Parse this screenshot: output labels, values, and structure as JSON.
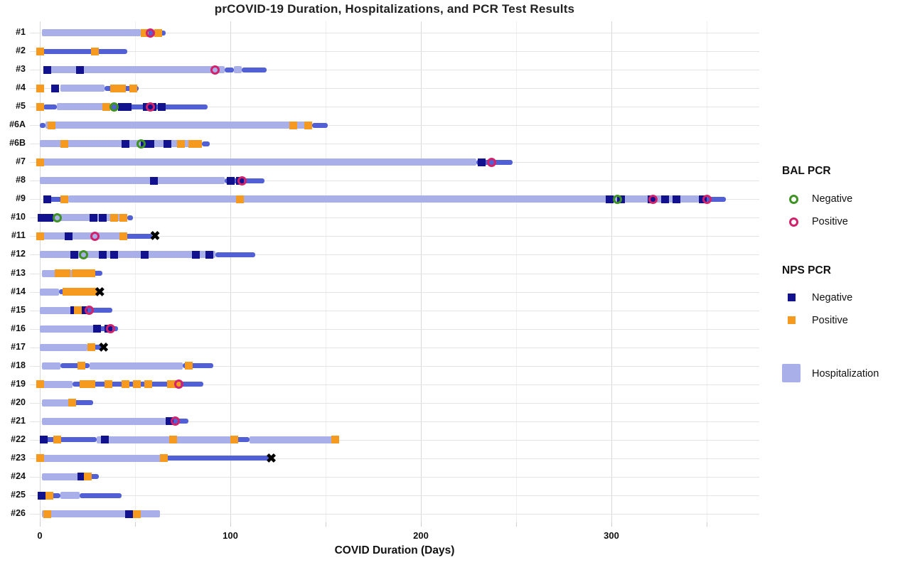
{
  "title": "prCOVID-19 Duration, Hospitalizations, and PCR Test Results",
  "x_axis": {
    "label": "COVID Duration (Days)",
    "ticks": [
      0,
      100,
      200,
      300
    ],
    "tick_labels": [
      "0",
      "100",
      "200",
      "300"
    ],
    "minor_ticks": [
      50,
      150,
      250,
      350
    ],
    "range": [
      -6,
      378
    ]
  },
  "colors": {
    "hospitalization": "#a9afe8",
    "duration_line": "#5160d4",
    "nps_negative": "#12128e",
    "nps_positive": "#f5991f",
    "bal_negative": "#3f9324",
    "bal_positive": "#d2226b",
    "death": "#000000",
    "grid_major": "#d8d8d8",
    "grid_minor": "#efefef",
    "grid_row": "#e4e4e4",
    "text": "#111111"
  },
  "legend": {
    "bal_title": "BAL PCR",
    "bal_negative_label": "Negative",
    "bal_positive_label": "Positive",
    "nps_title": "NPS PCR",
    "nps_negative_label": "Negative",
    "nps_positive_label": "Positive",
    "hospitalization_label": "Hospitalization"
  },
  "chart_data": {
    "type": "gantt-timeline",
    "xlabel": "COVID Duration (Days)",
    "x_unit": "days",
    "patients": [
      {
        "id": "#1",
        "segments": [
          {
            "type": "hospitalization",
            "start": 1,
            "end": 53
          },
          {
            "type": "duration",
            "start": 53,
            "end": 66
          }
        ],
        "nps_positive": [
          55,
          62
        ],
        "nps_negative": [],
        "bal_positive": [
          58
        ],
        "bal_negative": [],
        "death": null
      },
      {
        "id": "#2",
        "segments": [
          {
            "type": "duration",
            "start": 1,
            "end": 46
          }
        ],
        "nps_positive": [
          0,
          29
        ],
        "nps_negative": [],
        "bal_positive": [],
        "bal_negative": [],
        "death": null
      },
      {
        "id": "#3",
        "segments": [
          {
            "type": "hospitalization",
            "start": 2,
            "end": 97
          },
          {
            "type": "duration",
            "start": 97,
            "end": 102
          },
          {
            "type": "hospitalization",
            "start": 102,
            "end": 106
          },
          {
            "type": "duration",
            "start": 106,
            "end": 119
          }
        ],
        "nps_positive": [],
        "nps_negative": [
          4,
          21
        ],
        "bal_positive": [
          92
        ],
        "bal_negative": [],
        "death": null
      },
      {
        "id": "#4",
        "segments": [
          {
            "type": "hospitalization",
            "start": 11,
            "end": 34
          },
          {
            "type": "duration",
            "start": 34,
            "end": 52
          }
        ],
        "nps_positive": [
          0,
          39,
          43,
          49
        ],
        "nps_negative": [
          8
        ],
        "bal_positive": [],
        "bal_negative": [],
        "death": null
      },
      {
        "id": "#5",
        "segments": [
          {
            "type": "duration",
            "start": 2,
            "end": 9
          },
          {
            "type": "hospitalization",
            "start": 9,
            "end": 35
          },
          {
            "type": "duration",
            "start": 35,
            "end": 88
          }
        ],
        "nps_positive": [
          0,
          35
        ],
        "nps_negative": [
          43,
          46,
          56,
          59,
          64
        ],
        "bal_positive": [
          58
        ],
        "bal_negative": [
          39
        ],
        "death": null
      },
      {
        "id": "#6A",
        "segments": [
          {
            "type": "duration",
            "start": 0,
            "end": 3
          },
          {
            "type": "hospitalization",
            "start": 3,
            "end": 143
          },
          {
            "type": "duration",
            "start": 143,
            "end": 151
          }
        ],
        "nps_positive": [
          6,
          133,
          141
        ],
        "nps_negative": [],
        "bal_positive": [],
        "bal_negative": [],
        "death": null
      },
      {
        "id": "#6B",
        "segments": [
          {
            "type": "hospitalization",
            "start": 0,
            "end": 85
          },
          {
            "type": "duration",
            "start": 85,
            "end": 89
          }
        ],
        "nps_positive": [
          13,
          74,
          80,
          83
        ],
        "nps_negative": [
          45,
          55,
          58,
          67
        ],
        "bal_positive": [],
        "bal_negative": [
          53
        ],
        "death": null
      },
      {
        "id": "#7",
        "segments": [
          {
            "type": "hospitalization",
            "start": 1,
            "end": 229
          },
          {
            "type": "duration",
            "start": 229,
            "end": 248
          }
        ],
        "nps_positive": [
          0
        ],
        "nps_negative": [
          232
        ],
        "bal_positive": [
          237
        ],
        "bal_negative": [],
        "death": null
      },
      {
        "id": "#8",
        "segments": [
          {
            "type": "hospitalization",
            "start": 0,
            "end": 97
          },
          {
            "type": "duration",
            "start": 97,
            "end": 118
          }
        ],
        "nps_positive": [],
        "nps_negative": [
          60,
          100,
          105
        ],
        "bal_positive": [
          106
        ],
        "bal_negative": [],
        "death": null
      },
      {
        "id": "#9",
        "segments": [
          {
            "type": "duration",
            "start": 2,
            "end": 15
          },
          {
            "type": "hospitalization",
            "start": 15,
            "end": 346
          },
          {
            "type": "duration",
            "start": 346,
            "end": 360
          }
        ],
        "nps_positive": [
          13,
          105
        ],
        "nps_negative": [
          4,
          299,
          305,
          321,
          328,
          334,
          348
        ],
        "bal_positive": [
          322,
          350
        ],
        "bal_negative": [
          303
        ],
        "death": null
      },
      {
        "id": "#10",
        "segments": [
          {
            "type": "hospitalization",
            "start": 0,
            "end": 46
          },
          {
            "type": "duration",
            "start": 46,
            "end": 49
          }
        ],
        "nps_positive": [
          39,
          44
        ],
        "nps_negative": [
          1,
          5,
          28,
          33
        ],
        "bal_positive": [],
        "bal_negative": [
          9
        ],
        "death": null
      },
      {
        "id": "#11",
        "segments": [
          {
            "type": "hospitalization",
            "start": 1,
            "end": 45
          },
          {
            "type": "duration",
            "start": 45,
            "end": 59
          }
        ],
        "nps_positive": [
          0,
          44
        ],
        "nps_negative": [
          15
        ],
        "bal_positive": [
          29
        ],
        "bal_negative": [],
        "death": 61
      },
      {
        "id": "#12",
        "segments": [
          {
            "type": "hospitalization",
            "start": 0,
            "end": 92
          },
          {
            "type": "duration",
            "start": 92,
            "end": 113
          }
        ],
        "nps_positive": [],
        "nps_negative": [
          18,
          33,
          39,
          55,
          82,
          89
        ],
        "bal_positive": [],
        "bal_negative": [
          23
        ],
        "death": null
      },
      {
        "id": "#13",
        "segments": [
          {
            "type": "hospitalization",
            "start": 1,
            "end": 28
          },
          {
            "type": "duration",
            "start": 28,
            "end": 33
          }
        ],
        "nps_positive": [
          10,
          14,
          19,
          23,
          27
        ],
        "nps_negative": [],
        "bal_positive": [],
        "bal_negative": [],
        "death": null
      },
      {
        "id": "#14",
        "segments": [
          {
            "type": "hospitalization",
            "start": 0,
            "end": 10
          },
          {
            "type": "duration",
            "start": 10,
            "end": 30
          }
        ],
        "nps_positive": [
          14,
          18,
          21,
          25,
          28
        ],
        "nps_negative": [],
        "bal_positive": [],
        "bal_negative": [],
        "death": 32
      },
      {
        "id": "#15",
        "segments": [
          {
            "type": "hospitalization",
            "start": 0,
            "end": 18
          },
          {
            "type": "duration",
            "start": 18,
            "end": 38
          }
        ],
        "nps_positive": [
          20
        ],
        "nps_negative": [
          18,
          23
        ],
        "bal_positive": [
          26
        ],
        "bal_negative": [],
        "death": null
      },
      {
        "id": "#16",
        "segments": [
          {
            "type": "hospitalization",
            "start": 0,
            "end": 29
          },
          {
            "type": "duration",
            "start": 29,
            "end": 41
          }
        ],
        "nps_positive": [],
        "nps_negative": [
          30,
          36
        ],
        "bal_positive": [
          37
        ],
        "bal_negative": [],
        "death": null
      },
      {
        "id": "#17",
        "segments": [
          {
            "type": "hospitalization",
            "start": 0,
            "end": 25
          },
          {
            "type": "duration",
            "start": 25,
            "end": 32
          }
        ],
        "nps_positive": [
          27
        ],
        "nps_negative": [],
        "bal_positive": [],
        "bal_negative": [],
        "death": 34
      },
      {
        "id": "#18",
        "segments": [
          {
            "type": "hospitalization",
            "start": 1,
            "end": 11
          },
          {
            "type": "duration",
            "start": 11,
            "end": 26
          },
          {
            "type": "hospitalization",
            "start": 26,
            "end": 75
          },
          {
            "type": "duration",
            "start": 75,
            "end": 91
          }
        ],
        "nps_positive": [
          22,
          78
        ],
        "nps_negative": [],
        "bal_positive": [],
        "bal_negative": [],
        "death": null
      },
      {
        "id": "#19",
        "segments": [
          {
            "type": "hospitalization",
            "start": 2,
            "end": 17
          },
          {
            "type": "duration",
            "start": 17,
            "end": 86
          }
        ],
        "nps_positive": [
          0,
          23,
          27,
          36,
          45,
          51,
          57,
          69,
          72
        ],
        "nps_negative": [],
        "bal_positive": [
          73
        ],
        "bal_negative": [],
        "death": null
      },
      {
        "id": "#20",
        "segments": [
          {
            "type": "hospitalization",
            "start": 1,
            "end": 16
          },
          {
            "type": "duration",
            "start": 16,
            "end": 28
          }
        ],
        "nps_positive": [
          17
        ],
        "nps_negative": [],
        "bal_positive": [],
        "bal_negative": [],
        "death": null
      },
      {
        "id": "#21",
        "segments": [
          {
            "type": "hospitalization",
            "start": 1,
            "end": 66
          },
          {
            "type": "duration",
            "start": 66,
            "end": 78
          }
        ],
        "nps_positive": [],
        "nps_negative": [
          68
        ],
        "bal_positive": [
          71
        ],
        "bal_negative": [],
        "death": null
      },
      {
        "id": "#22",
        "segments": [
          {
            "type": "duration",
            "start": 0,
            "end": 30
          },
          {
            "type": "hospitalization",
            "start": 30,
            "end": 102
          },
          {
            "type": "duration",
            "start": 102,
            "end": 110
          },
          {
            "type": "hospitalization",
            "start": 110,
            "end": 154
          }
        ],
        "nps_positive": [
          9,
          70,
          102,
          155
        ],
        "nps_negative": [
          2,
          34
        ],
        "bal_positive": [],
        "bal_negative": [],
        "death": null
      },
      {
        "id": "#23",
        "segments": [
          {
            "type": "hospitalization",
            "start": 2,
            "end": 65
          },
          {
            "type": "duration",
            "start": 65,
            "end": 120
          }
        ],
        "nps_positive": [
          0,
          65
        ],
        "nps_negative": [],
        "bal_positive": [],
        "bal_negative": [],
        "death": 122
      },
      {
        "id": "#24",
        "segments": [
          {
            "type": "hospitalization",
            "start": 1,
            "end": 21
          },
          {
            "type": "duration",
            "start": 21,
            "end": 31
          }
        ],
        "nps_positive": [
          25
        ],
        "nps_negative": [
          22
        ],
        "bal_positive": [],
        "bal_negative": [],
        "death": null
      },
      {
        "id": "#25",
        "segments": [
          {
            "type": "duration",
            "start": 0,
            "end": 11
          },
          {
            "type": "hospitalization",
            "start": 11,
            "end": 21
          },
          {
            "type": "duration",
            "start": 21,
            "end": 43
          }
        ],
        "nps_positive": [
          5
        ],
        "nps_negative": [
          1
        ],
        "bal_positive": [],
        "bal_negative": [],
        "death": null
      },
      {
        "id": "#26",
        "segments": [
          {
            "type": "hospitalization",
            "start": 1,
            "end": 63
          }
        ],
        "nps_positive": [
          4,
          51
        ],
        "nps_negative": [
          47
        ],
        "bal_positive": [],
        "bal_negative": [],
        "death": null
      }
    ]
  }
}
